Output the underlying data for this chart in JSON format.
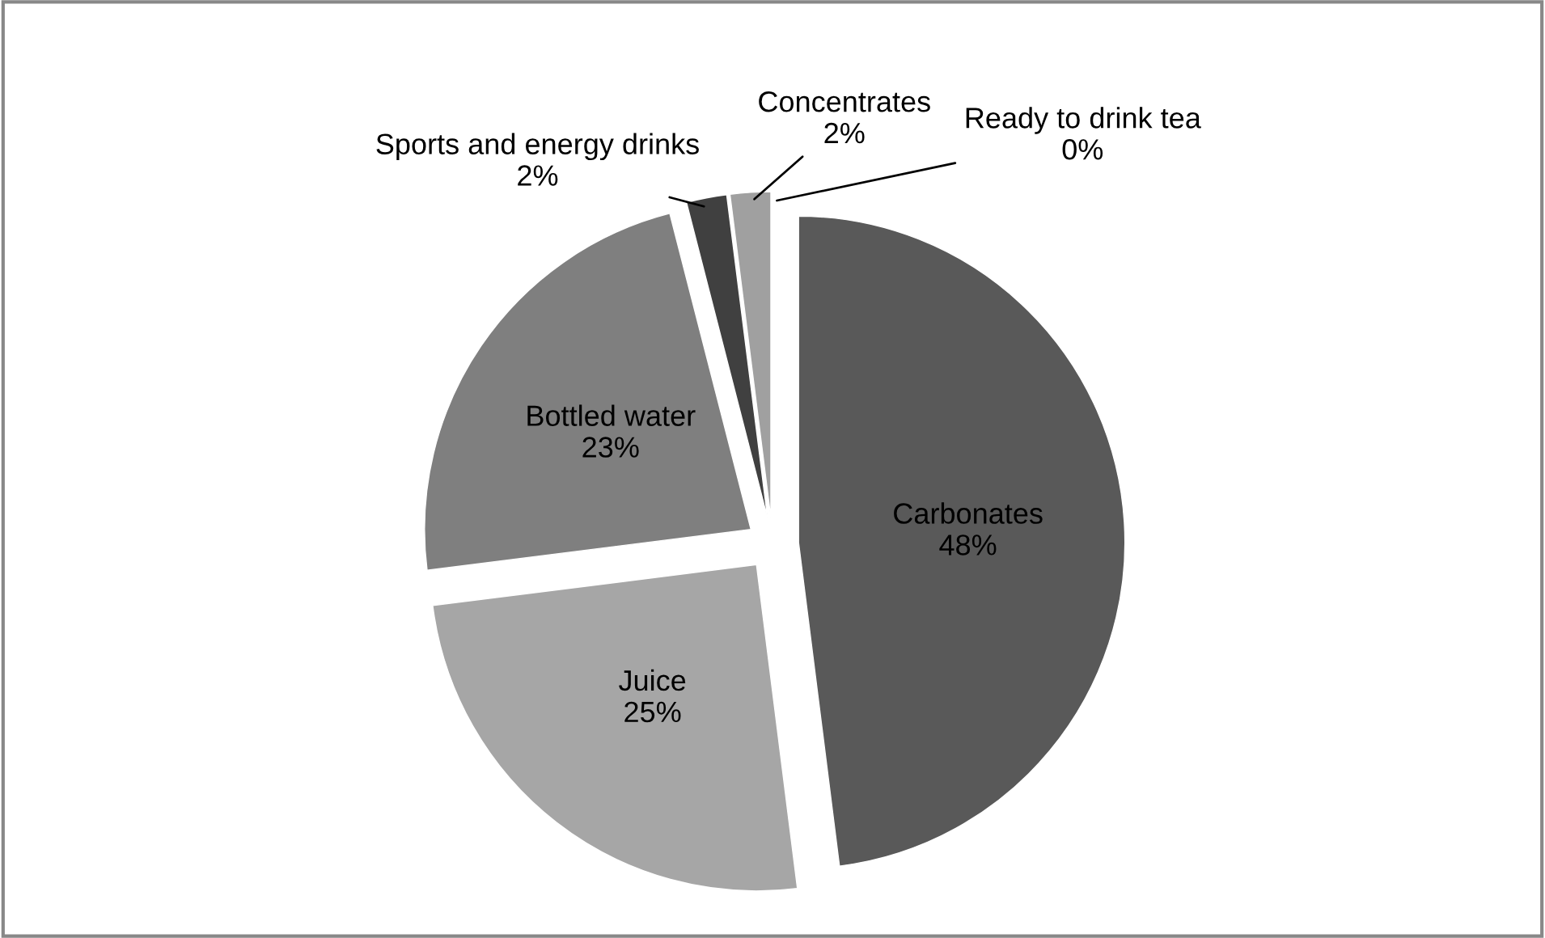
{
  "chart_data": {
    "type": "pie",
    "categories": [
      "Carbonates",
      "Juice",
      "Bottled water",
      "Sports and energy drinks",
      "Concentrates",
      "Ready to drink tea"
    ],
    "values": [
      48,
      25,
      23,
      2,
      2,
      0
    ],
    "value_labels": [
      "48%",
      "25%",
      "23%",
      "2%",
      "2%",
      "0%"
    ],
    "colors": [
      "#595959",
      "#a6a6a6",
      "#7f7f7f",
      "#404040",
      "#a0a0a0",
      "#d9d9d9"
    ],
    "legend": false
  }
}
